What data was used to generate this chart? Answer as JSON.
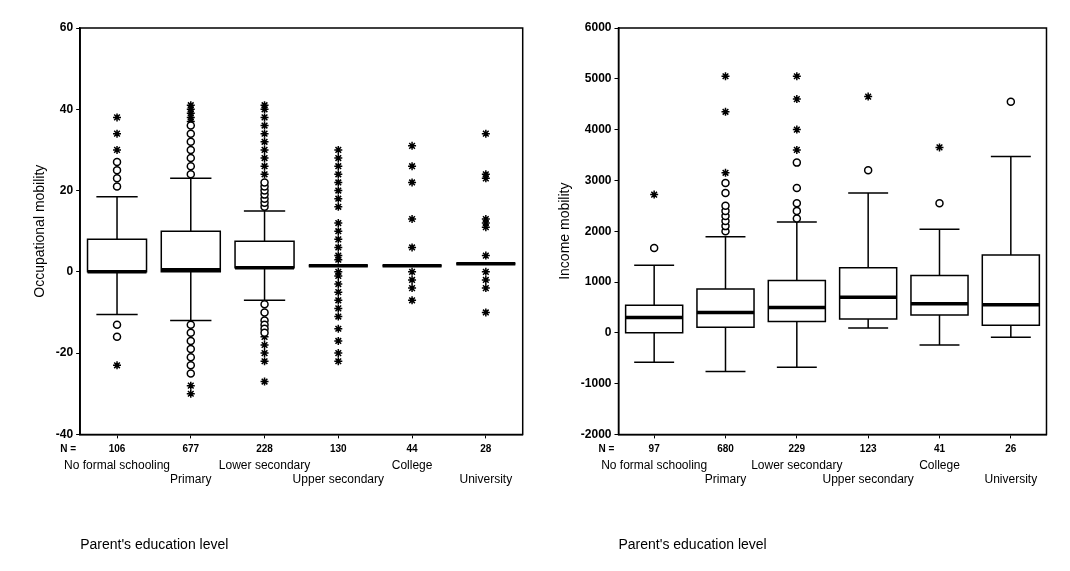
{
  "chart_data": [
    {
      "type": "box",
      "ylabel": "Occupational mobility",
      "xlabel": "Parent's education level",
      "categories": [
        "No formal schooling",
        "Primary",
        "Lower secondary",
        "Upper secondary",
        "College",
        "University"
      ],
      "ylim": [
        -40,
        60
      ],
      "yticks": [
        -40,
        -20,
        0,
        20,
        40,
        60
      ],
      "annotations": [
        "N =",
        {
          "text": "106",
          "x": "No formal schooling"
        },
        {
          "text": "677",
          "x": "Primary"
        },
        {
          "text": "228",
          "x": "Lower secondary"
        },
        {
          "text": "130",
          "x": "Upper secondary"
        },
        {
          "text": "44",
          "x": "College"
        },
        {
          "text": "28",
          "x": "University"
        }
      ],
      "series": [
        {
          "type": "box",
          "color": "#000000",
          "boxes": [
            {
              "low": -10.5,
              "q1": 0,
              "median": 0,
              "q3": 8,
              "high": 18.5,
              "outliers": [
                21,
                23,
                25,
                27,
                -13,
                -16
              ]
            },
            {
              "low": -12,
              "q1": 0,
              "median": 0.5,
              "q3": 10,
              "high": 23,
              "outliers": [
                24,
                26,
                28,
                30,
                32,
                34,
                36,
                -13,
                -15,
                -17,
                -19,
                -21,
                -23,
                -25
              ]
            },
            {
              "low": -7,
              "q1": 1,
              "median": 1,
              "q3": 7.5,
              "high": 15,
              "outliers": [
                16,
                17,
                18,
                19,
                20,
                21,
                22,
                -8,
                -10,
                -12,
                -13,
                -14,
                -15
              ]
            },
            {
              "low": 1.5,
              "q1": 1.5,
              "median": 1.5,
              "q3": 1.5,
              "high": 1.5
            },
            {
              "low": 1.5,
              "q1": 1.5,
              "median": 1.5,
              "q3": 1.5,
              "high": 1.5
            },
            {
              "low": 2,
              "q1": 2,
              "median": 2,
              "q3": 2,
              "high": 2
            }
          ]
        },
        {
          "type": "scatter",
          "color": "#000000",
          "marker": "cross",
          "x": [
            "No formal schooling",
            "No formal schooling",
            "No formal schooling",
            "No formal schooling",
            "Primary",
            "Primary",
            "Primary",
            "Primary",
            "Primary",
            "Primary",
            "Primary",
            "Lower secondary",
            "Lower secondary",
            "Lower secondary",
            "Lower secondary",
            "Lower secondary",
            "Lower secondary",
            "Lower secondary",
            "Lower secondary",
            "Lower secondary",
            "Lower secondary",
            "Lower secondary",
            "Lower secondary",
            "Lower secondary",
            "Lower secondary",
            "Lower secondary",
            "Upper secondary",
            "Upper secondary",
            "Upper secondary",
            "Upper secondary",
            "Upper secondary",
            "Upper secondary",
            "Upper secondary",
            "Upper secondary",
            "Upper secondary",
            "Upper secondary",
            "Upper secondary",
            "Upper secondary",
            "Upper secondary",
            "Upper secondary",
            "Upper secondary",
            "Upper secondary",
            "Upper secondary",
            "Upper secondary",
            "Upper secondary",
            "Upper secondary",
            "Upper secondary",
            "Upper secondary",
            "Upper secondary",
            "Upper secondary",
            "Upper secondary",
            "College",
            "College",
            "College",
            "College",
            "College",
            "College",
            "College",
            "College",
            "College",
            "University",
            "University",
            "University",
            "University",
            "University",
            "University",
            "University",
            "University",
            "University",
            "University",
            "University"
          ],
          "values": [
            30,
            34,
            38,
            -23,
            37,
            38,
            39,
            40,
            41,
            -28,
            -30,
            24,
            26,
            28,
            30,
            32,
            34,
            36,
            38,
            40,
            41,
            -16,
            -18,
            -20,
            -22,
            -27,
            30,
            28,
            26,
            24,
            22,
            20,
            18,
            16,
            12,
            10,
            8,
            6,
            4,
            3,
            0,
            -1,
            -3,
            -5,
            -7,
            -9,
            -11,
            -14,
            -17,
            -20,
            -22,
            31,
            26,
            22,
            13,
            6,
            0,
            -2,
            -4,
            -7,
            34,
            24,
            23,
            13,
            12,
            11,
            4,
            0,
            -2,
            -4,
            -10
          ]
        }
      ]
    },
    {
      "type": "box",
      "ylabel": "Income mobility",
      "xlabel": "Parent's education level",
      "categories": [
        "No formal schooling",
        "Primary",
        "Lower secondary",
        "Upper secondary",
        "College",
        "University"
      ],
      "ylim": [
        -2000,
        6000
      ],
      "yticks": [
        -2000,
        -1000,
        0,
        1000,
        2000,
        3000,
        4000,
        5000,
        6000
      ],
      "annotations": [
        "N =",
        {
          "text": "97",
          "x": "No formal schooling"
        },
        {
          "text": "680",
          "x": "Primary"
        },
        {
          "text": "229",
          "x": "Lower secondary"
        },
        {
          "text": "123",
          "x": "Upper secondary"
        },
        {
          "text": "41",
          "x": "College"
        },
        {
          "text": "26",
          "x": "University"
        }
      ],
      "series": [
        {
          "type": "box",
          "color": "#000000",
          "boxes": [
            {
              "low": -580,
              "q1": 0,
              "median": 300,
              "q3": 540,
              "high": 1330,
              "outliers": [
                1670
              ]
            },
            {
              "low": -760,
              "q1": 110,
              "median": 400,
              "q3": 860,
              "high": 1890,
              "outliers": [
                2000,
                2100,
                2200,
                2300,
                2400,
                2500,
                2750,
                2950
              ]
            },
            {
              "low": -680,
              "q1": 220,
              "median": 500,
              "q3": 1030,
              "high": 2180,
              "outliers": [
                2250,
                2400,
                2550,
                2850,
                3350
              ]
            },
            {
              "low": 95,
              "q1": 270,
              "median": 700,
              "q3": 1280,
              "high": 2750,
              "outliers": [
                3200
              ]
            },
            {
              "low": -240,
              "q1": 350,
              "median": 570,
              "q3": 1130,
              "high": 2040,
              "outliers": [
                2550
              ]
            },
            {
              "low": -90,
              "q1": 150,
              "median": 550,
              "q3": 1530,
              "high": 3470,
              "outliers": [
                4550
              ]
            }
          ]
        },
        {
          "type": "scatter",
          "color": "#000000",
          "marker": "cross",
          "x": [
            "No formal schooling",
            "Primary",
            "Primary",
            "Primary",
            "Lower secondary",
            "Lower secondary",
            "Lower secondary",
            "Lower secondary",
            "Upper secondary",
            "College"
          ],
          "values": [
            2720,
            3150,
            4350,
            5050,
            3600,
            4000,
            4600,
            5050,
            4650,
            3650
          ]
        }
      ]
    }
  ]
}
